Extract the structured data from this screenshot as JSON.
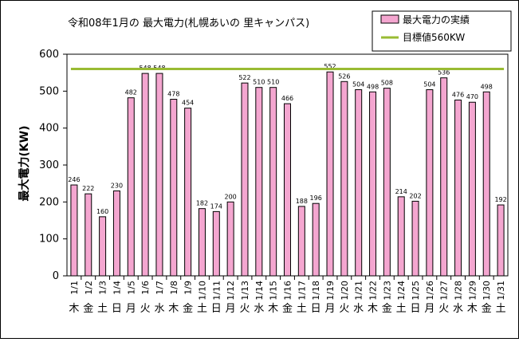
{
  "chart_data": {
    "type": "bar",
    "title": "令和08年1月の 最大電力(札幌あいの 里キャンパス)",
    "ylabel": "最大電力(KW)",
    "ylim": [
      0,
      600
    ],
    "yticks": [
      "0",
      "100",
      "200",
      "300",
      "400",
      "500",
      "600"
    ],
    "categories": [
      "1/1",
      "1/2",
      "1/3",
      "1/4",
      "1/5",
      "1/6",
      "1/7",
      "1/8",
      "1/9",
      "1/10",
      "1/11",
      "1/12",
      "1/13",
      "1/14",
      "1/15",
      "1/16",
      "1/17",
      "1/18",
      "1/19",
      "1/20",
      "1/21",
      "1/22",
      "1/23",
      "1/24",
      "1/25",
      "1/26",
      "1/27",
      "1/28",
      "1/29",
      "1/30",
      "1/31"
    ],
    "weekdays": [
      "木",
      "金",
      "土",
      "日",
      "月",
      "火",
      "水",
      "木",
      "金",
      "土",
      "日",
      "月",
      "火",
      "水",
      "木",
      "金",
      "土",
      "日",
      "月",
      "火",
      "水",
      "木",
      "金",
      "土",
      "日",
      "月",
      "火",
      "水",
      "木",
      "金",
      "土"
    ],
    "series": [
      {
        "name": "最大電力の実績",
        "color": "#f4a6d0",
        "values": [
          246,
          222,
          160,
          230,
          482,
          548,
          548,
          478,
          454,
          182,
          174,
          200,
          522,
          510,
          510,
          466,
          188,
          196,
          552,
          526,
          504,
          498,
          508,
          214,
          202,
          504,
          536,
          476,
          470,
          498,
          192
        ]
      }
    ],
    "target": {
      "name": "目標値560KW",
      "value": 560,
      "color": "#99bb33"
    },
    "legend_position": "top-right",
    "grid": false
  }
}
